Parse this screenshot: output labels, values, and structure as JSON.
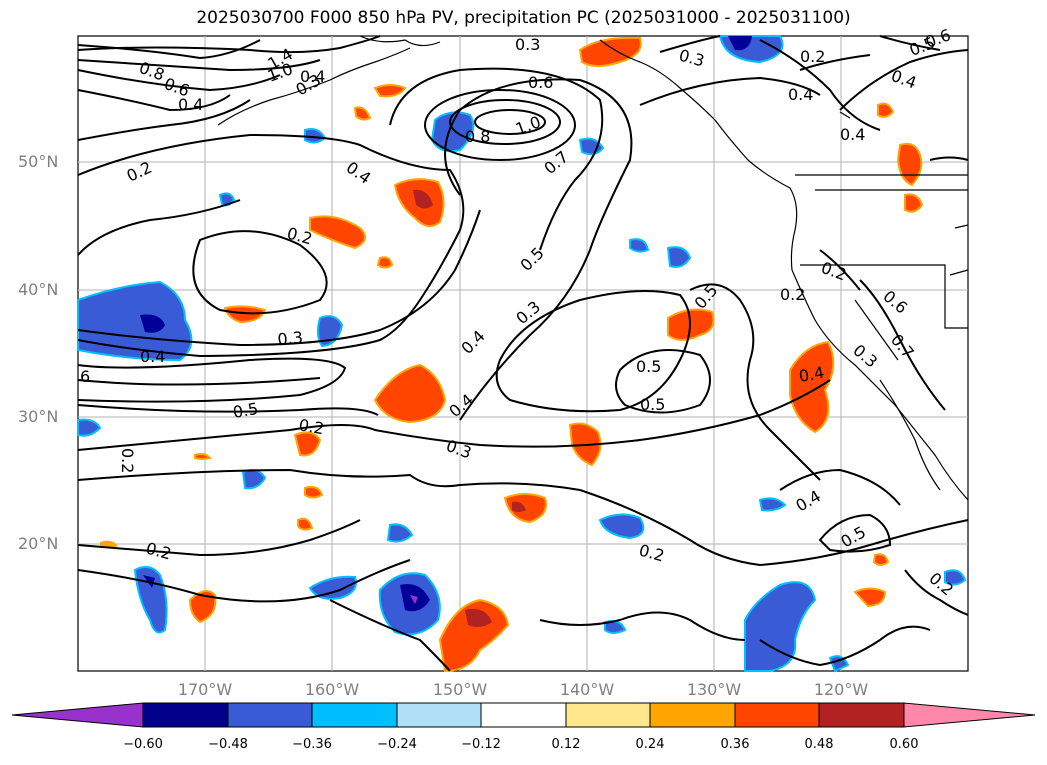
{
  "title": "2025030700 F000 850 hPa PV, precipitation PC (2025031000 - 2025031100)",
  "map": {
    "lat_labels": [
      "50°N",
      "40°N",
      "30°N",
      "20°N"
    ],
    "lon_labels": [
      "170°W",
      "160°W",
      "150°W",
      "140°W",
      "130°W",
      "120°W"
    ],
    "contour_labels": [
      "1.4",
      "1.0",
      "0.8",
      "0.6",
      "0.4",
      "0.3",
      "0.3",
      "0.4",
      "0.6",
      "0.5",
      "0.2",
      "0.4",
      "0.6",
      "0.8",
      "1.0",
      "0.7",
      "0.4",
      "0.2",
      "0.5",
      "0.3",
      "0.4",
      "0.5",
      "0.3",
      "0.2",
      "0.4",
      "0.6",
      "0.5",
      "0.4",
      "0.2",
      "0.3",
      "0.2",
      "0.4",
      "0.5",
      "0.2",
      "0.2",
      "0.2",
      "0.3",
      "0.3",
      "0.4",
      "0.5",
      "0.2",
      "6",
      "0.2",
      "0.7",
      "0.4",
      "0.4",
      "0.5"
    ],
    "colors": {
      "land_line": "#000000",
      "grid": "#b0b0b0",
      "contour": "#000000",
      "neg_strong": "#000099",
      "neg_mid": "#3a5bd6",
      "neg_light": "#00bfff",
      "pos_light": "#ffa500",
      "pos_mid": "#ff4500",
      "pos_strong": "#b22222"
    }
  },
  "colorbar": {
    "ticks": [
      "−0.60",
      "−0.48",
      "−0.36",
      "−0.24",
      "−0.12",
      "0.12",
      "0.24",
      "0.36",
      "0.48",
      "0.60"
    ],
    "colors": [
      "#9932cc",
      "#00008b",
      "#3a5bd6",
      "#00bfff",
      "#b0e0f6",
      "#ffffff",
      "#ffe88c",
      "#ffa500",
      "#ff4500",
      "#b22222",
      "#ff88aa"
    ]
  }
}
